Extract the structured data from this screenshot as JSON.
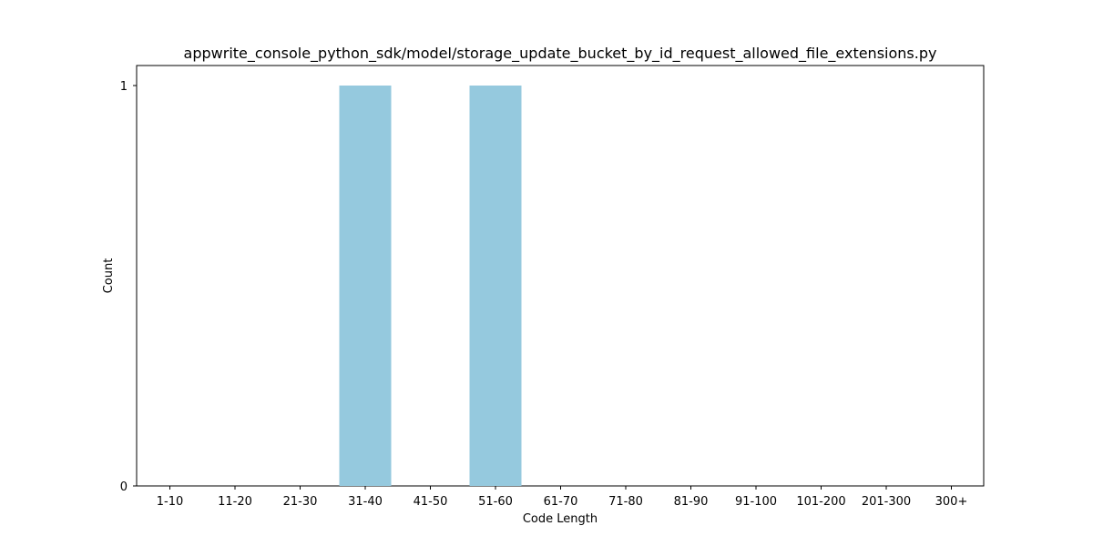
{
  "chart_data": {
    "type": "bar",
    "title": "appwrite_console_python_sdk/model/storage_update_bucket_by_id_request_allowed_file_extensions.py",
    "xlabel": "Code Length",
    "ylabel": "Count",
    "categories": [
      "1-10",
      "11-20",
      "21-30",
      "31-40",
      "41-50",
      "51-60",
      "61-70",
      "71-80",
      "81-90",
      "91-100",
      "101-200",
      "201-300",
      "300+"
    ],
    "values": [
      0,
      0,
      0,
      1,
      0,
      1,
      0,
      0,
      0,
      0,
      0,
      0,
      0
    ],
    "yticks": [
      0,
      1
    ],
    "ylim": [
      0,
      1.05
    ],
    "grid": false,
    "bar_color": "#95c9de"
  }
}
